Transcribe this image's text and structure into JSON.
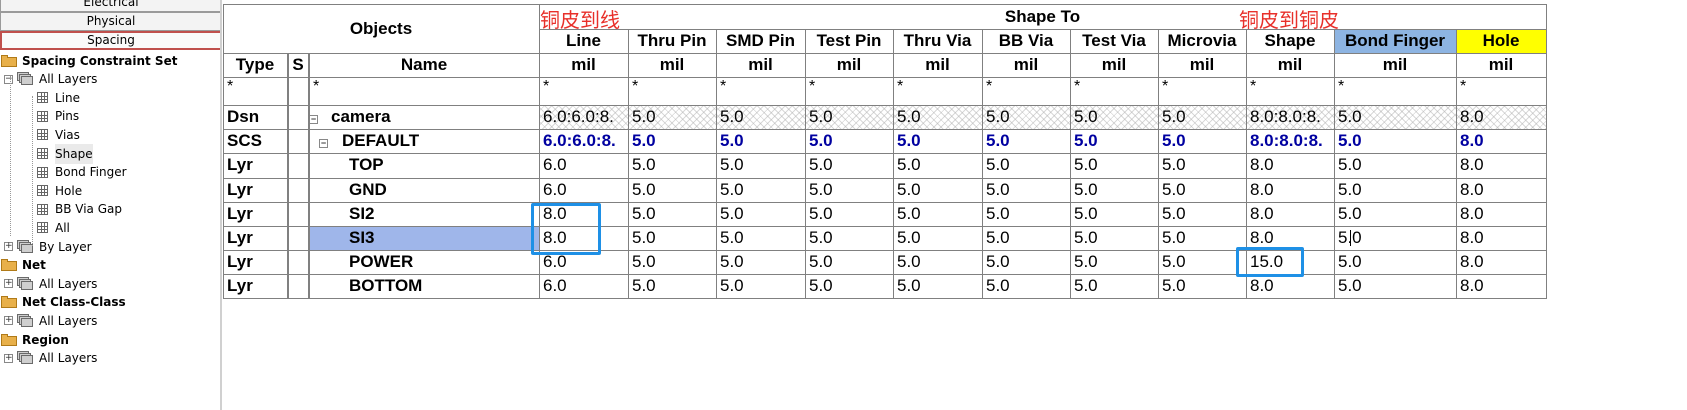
{
  "tabs": [
    "Electrical",
    "Physical",
    "Spacing"
  ],
  "active_tab": "Spacing",
  "tree": [
    {
      "label": "Spacing Constraint Set",
      "kind": "folder",
      "bold": true
    },
    {
      "label": "All Layers",
      "kind": "stack",
      "expander": "−"
    },
    {
      "label": "Line",
      "kind": "grid"
    },
    {
      "label": "Pins",
      "kind": "grid"
    },
    {
      "label": "Vias",
      "kind": "grid"
    },
    {
      "label": "Shape",
      "kind": "grid",
      "selected": true
    },
    {
      "label": "Bond Finger",
      "kind": "grid"
    },
    {
      "label": "Hole",
      "kind": "grid"
    },
    {
      "label": "BB Via Gap",
      "kind": "grid"
    },
    {
      "label": "All",
      "kind": "grid"
    },
    {
      "label": "By Layer",
      "kind": "stack",
      "expander": "+"
    },
    {
      "label": "Net",
      "kind": "folder",
      "bold": true
    },
    {
      "label": "All Layers",
      "kind": "stack",
      "expander": "+"
    },
    {
      "label": "Net Class-Class",
      "kind": "folder",
      "bold": true
    },
    {
      "label": "All Layers",
      "kind": "stack",
      "expander": "+"
    },
    {
      "label": "Region",
      "kind": "folder",
      "bold": true
    },
    {
      "label": "All Layers",
      "kind": "stack",
      "expander": "+"
    }
  ],
  "header": {
    "objects": "Objects",
    "shape_to": "Shape To",
    "type": "Type",
    "s": "S",
    "name": "Name",
    "filter": "*"
  },
  "columns": [
    {
      "label": "Line",
      "unit": "mil"
    },
    {
      "label": "Thru Pin",
      "unit": "mil"
    },
    {
      "label": "SMD Pin",
      "unit": "mil"
    },
    {
      "label": "Test Pin",
      "unit": "mil"
    },
    {
      "label": "Thru Via",
      "unit": "mil"
    },
    {
      "label": "BB Via",
      "unit": "mil"
    },
    {
      "label": "Test Via",
      "unit": "mil"
    },
    {
      "label": "Microvia",
      "unit": "mil"
    },
    {
      "label": "Shape",
      "unit": "mil"
    },
    {
      "label": "Bond Finger",
      "unit": "mil",
      "bg": "#8db4e2"
    },
    {
      "label": "Hole",
      "unit": "mil",
      "bg": "#ffff00"
    }
  ],
  "rows": [
    {
      "type": "Dsn",
      "name": "camera",
      "expander": "−",
      "values": [
        "6.0:6.0:8.",
        "5.0",
        "5.0",
        "5.0",
        "5.0",
        "5.0",
        "5.0",
        "5.0",
        "8.0:8.0:8.",
        "5.0",
        "8.0"
      ],
      "hatched": true
    },
    {
      "type": "SCS",
      "name": "DEFAULT",
      "expander": "−",
      "values": [
        "6.0:6.0:8.",
        "5.0",
        "5.0",
        "5.0",
        "5.0",
        "5.0",
        "5.0",
        "5.0",
        "8.0:8.0:8.",
        "5.0",
        "8.0"
      ],
      "blue": true
    },
    {
      "type": "Lyr",
      "name": "TOP",
      "values": [
        "6.0",
        "5.0",
        "5.0",
        "5.0",
        "5.0",
        "5.0",
        "5.0",
        "5.0",
        "8.0",
        "5.0",
        "8.0"
      ]
    },
    {
      "type": "Lyr",
      "name": "GND",
      "values": [
        "6.0",
        "5.0",
        "5.0",
        "5.0",
        "5.0",
        "5.0",
        "5.0",
        "5.0",
        "8.0",
        "5.0",
        "8.0"
      ]
    },
    {
      "type": "Lyr",
      "name": "SI2",
      "values": [
        "8.0",
        "5.0",
        "5.0",
        "5.0",
        "5.0",
        "5.0",
        "5.0",
        "5.0",
        "8.0",
        "5.0",
        "8.0"
      ]
    },
    {
      "type": "Lyr",
      "name": "SI3",
      "selected": true,
      "values": [
        "8.0",
        "5.0",
        "5.0",
        "5.0",
        "5.0",
        "5.0",
        "5.0",
        "5.0",
        "8.0",
        "5.0",
        "8.0"
      ]
    },
    {
      "type": "Lyr",
      "name": "POWER",
      "values": [
        "6.0",
        "5.0",
        "5.0",
        "5.0",
        "5.0",
        "5.0",
        "5.0",
        "5.0",
        "15.0",
        "5.0",
        "8.0"
      ]
    },
    {
      "type": "Lyr",
      "name": "BOTTOM",
      "values": [
        "6.0",
        "5.0",
        "5.0",
        "5.0",
        "5.0",
        "5.0",
        "5.0",
        "5.0",
        "8.0",
        "5.0",
        "8.0"
      ]
    }
  ],
  "annotations": {
    "line_note": "铜皮到线",
    "shape_note": "铜皮到铜皮"
  },
  "colors": {
    "grid_line": "#808080",
    "highlight_box": "#1e90e6",
    "annotation_red": "#e8302a",
    "scs_blue": "#0000a0",
    "selected_row": "#9fb6ea"
  }
}
